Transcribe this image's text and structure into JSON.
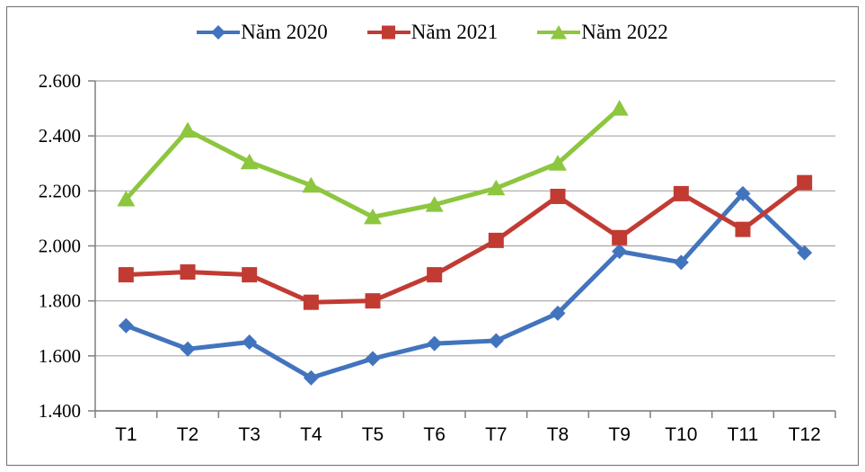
{
  "chart_data": {
    "type": "line",
    "title": "",
    "categories": [
      "T1",
      "T2",
      "T3",
      "T4",
      "T5",
      "T6",
      "T7",
      "T8",
      "T9",
      "T10",
      "T11",
      "T12"
    ],
    "series": [
      {
        "name": "Năm 2020",
        "marker": "diamond",
        "color": "#4274BE",
        "values": [
          1.71,
          1.625,
          1.65,
          1.52,
          1.59,
          1.645,
          1.655,
          1.755,
          1.98,
          1.94,
          2.19,
          1.975
        ]
      },
      {
        "name": "Năm 2021",
        "marker": "square",
        "color": "#C13B33",
        "values": [
          1.895,
          1.905,
          1.895,
          1.795,
          1.8,
          1.895,
          2.02,
          2.18,
          2.03,
          2.19,
          2.06,
          2.23
        ]
      },
      {
        "name": "Năm 2022",
        "marker": "triangle",
        "color": "#8DC63F",
        "values": [
          2.17,
          2.42,
          2.305,
          2.22,
          2.105,
          2.15,
          2.21,
          2.3,
          2.5,
          null,
          null,
          null
        ]
      }
    ],
    "xlabel": "",
    "ylabel": "",
    "ylim": [
      1.4,
      2.6
    ],
    "y_ticks": {
      "values": [
        2.6,
        2.4,
        2.2,
        2.0,
        1.8,
        1.6,
        1.4
      ],
      "labels": [
        "2.600",
        "2.400",
        "2.200",
        "2.000",
        "1.800",
        "1.600",
        "1.400"
      ]
    },
    "grid": true,
    "legend_position": "top",
    "colors": {
      "gridline": "#a6a6a6",
      "axis": "#7f7f7f",
      "text": "#000000",
      "frame_border": "#6e6e6e"
    }
  }
}
